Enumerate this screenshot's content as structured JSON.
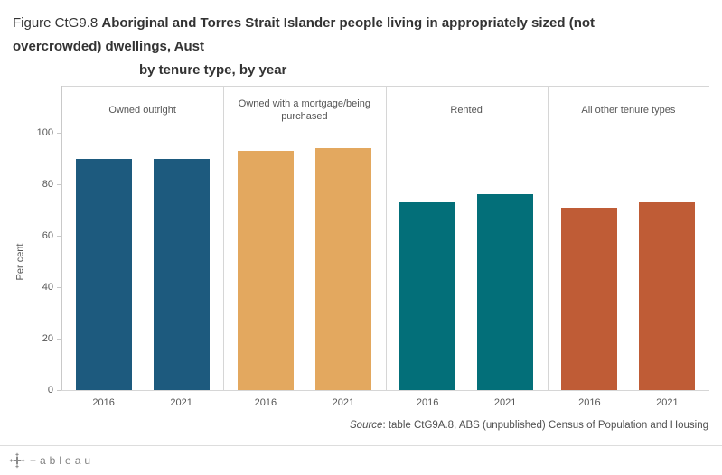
{
  "title": {
    "prefix": "Figure CtG9.8 ",
    "main": "Aboriginal and Torres Strait Islander people living in appropriately sized (not\novercrowded) dwellings, Aust",
    "subtitle": "by tenure type, by year"
  },
  "chart_data": {
    "type": "bar",
    "title": "Figure CtG9.8 Aboriginal and Torres Strait Islander people living in appropriately sized (not overcrowded) dwellings, Aust — by tenure type, by year",
    "ylabel": "Per cent",
    "ylim": [
      0,
      100
    ],
    "yticks": [
      0,
      20,
      40,
      60,
      80,
      100
    ],
    "grid": false,
    "categories": [
      "2016",
      "2021"
    ],
    "panels": [
      {
        "label": "Owned outright",
        "color": "#1d5a7e",
        "values": [
          90,
          90
        ]
      },
      {
        "label": "Owned with a mortgage/being purchased",
        "color": "#e3a85f",
        "values": [
          93,
          94
        ]
      },
      {
        "label": "Rented",
        "color": "#036f79",
        "values": [
          73,
          76
        ]
      },
      {
        "label": "All other tenure types",
        "color": "#bf5c36",
        "values": [
          71,
          73
        ]
      }
    ]
  },
  "source": {
    "label": "Source",
    "rest": ": table CtG9A.8, ABS (unpublished) Census of Population and Housing"
  },
  "footer": {
    "brand": "+ableau"
  }
}
